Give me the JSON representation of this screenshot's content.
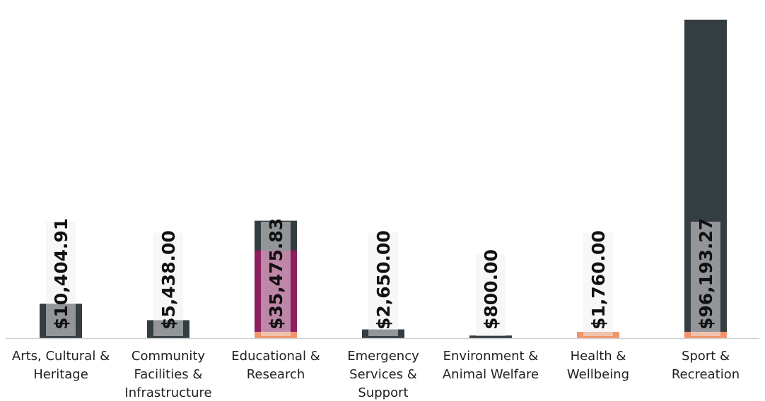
{
  "chart_data": {
    "type": "bar",
    "categories": [
      [
        "Arts, Cultural &",
        "Heritage"
      ],
      [
        "Community",
        "Facilities &",
        "Infrastructure"
      ],
      [
        "Educational &",
        "Research"
      ],
      [
        "Emergency",
        "Services &",
        "Support"
      ],
      [
        "Environment &",
        "Animal Welfare"
      ],
      [
        "Health &",
        "Wellbeing"
      ],
      [
        "Sport &",
        "Recreation"
      ]
    ],
    "values": [
      10404.91,
      5438.0,
      35475.83,
      2650.0,
      800.0,
      1760.0,
      96193.27
    ],
    "value_labels": [
      "$10,404.91",
      "$5,438.00",
      "$35,475.83",
      "$2,650.00",
      "$800.00",
      "$1,760.00",
      "$96,193.27"
    ],
    "ylim": [
      0,
      100000
    ],
    "colors": {
      "bar": "#343d42",
      "highlight": "#8c1f5e",
      "accent": "#f0956a",
      "label_bg": "#efefef",
      "axis": "#d0d0d0"
    },
    "highlighted_category_index": 2,
    "grid": false,
    "legend": "none"
  }
}
